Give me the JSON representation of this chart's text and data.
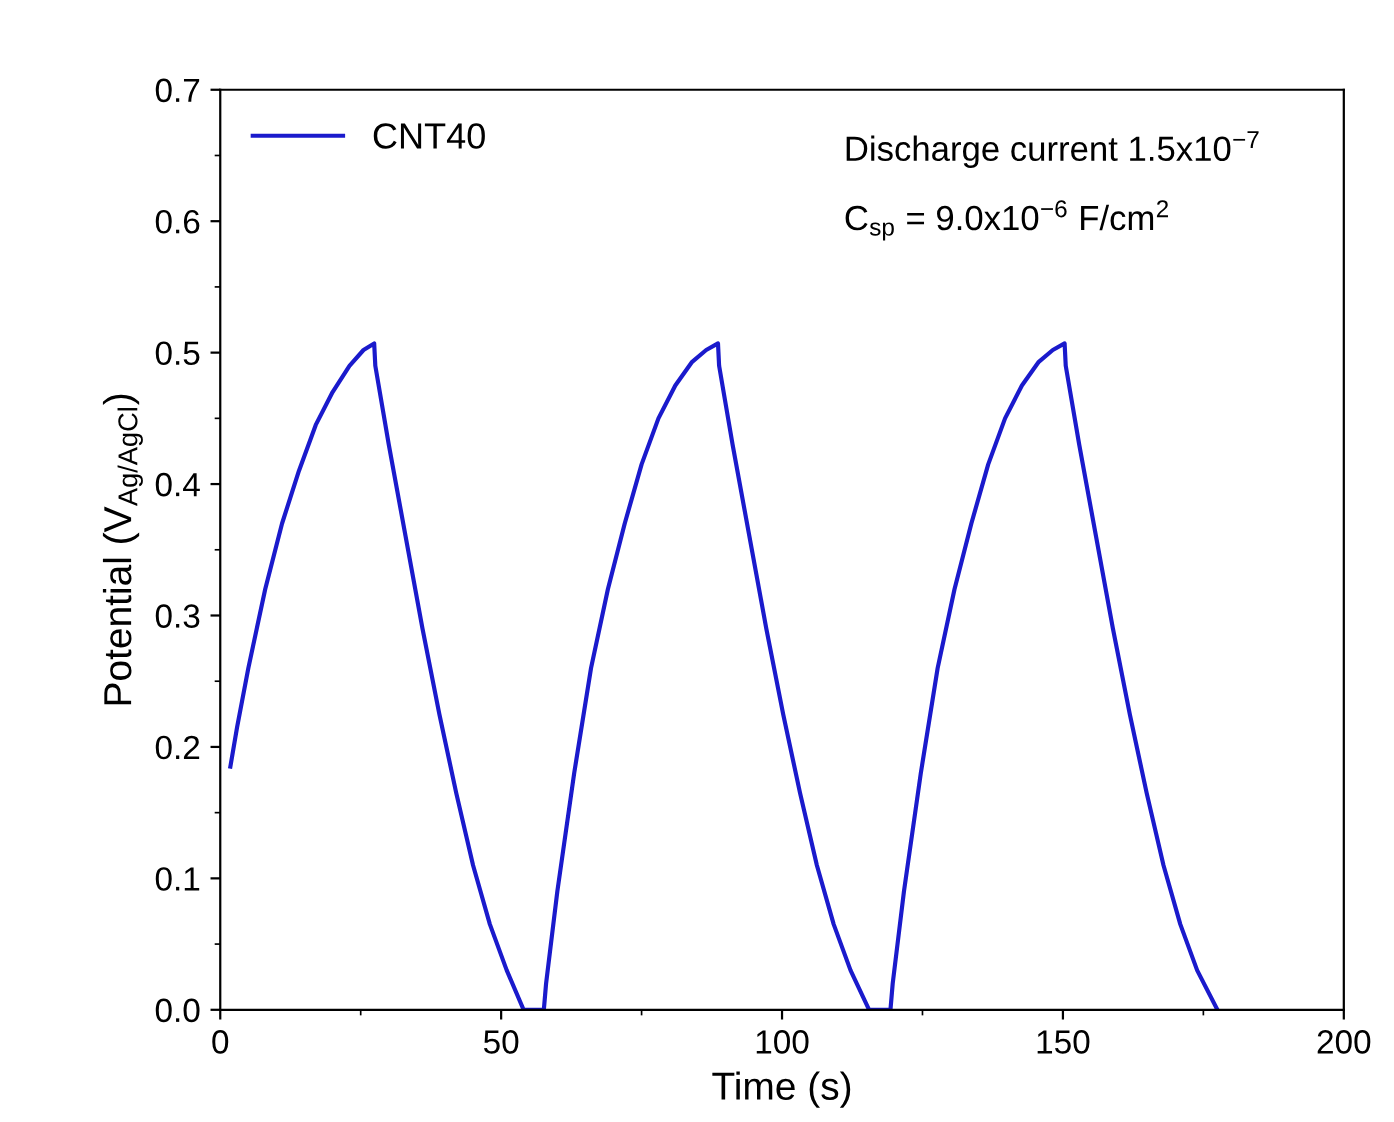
{
  "chart_data": {
    "type": "line",
    "xlabel": "Time (s)",
    "ylabel": "Potential (V$_{Ag/AgCl}$)",
    "xlim": [
      0,
      200
    ],
    "xticks": [
      0,
      50,
      100,
      150,
      200
    ],
    "ylim": [
      0,
      0.7
    ],
    "yticks": [
      {
        "value": 0,
        "label": "0.0"
      },
      0.1,
      0.2,
      0.3,
      0.4,
      0.5,
      0.6,
      0.7
    ],
    "grid": false,
    "legend": "top left",
    "marker": "none",
    "line_style": "solid",
    "annotations": [
      "Discharge current 1.5x10$^{−7}$",
      "C$_{sp}$ = 9.0x10$^{−6}$ F/cm$^{2}$"
    ],
    "series": [
      {
        "name": "CNT40",
        "color": "#1a1acc",
        "x": [
          1.8,
          3,
          5,
          8,
          11,
          14,
          17,
          20,
          23,
          25.5,
          27.4,
          27.6,
          30,
          33,
          36,
          39,
          42,
          45,
          48,
          51,
          54,
          57.6,
          58,
          60,
          63,
          66,
          69,
          72,
          75,
          78,
          81,
          84,
          86.5,
          88.6,
          88.8,
          91.2,
          94.2,
          97.2,
          100.2,
          103.2,
          106.2,
          109.2,
          112.2,
          115.5,
          119.3,
          119.7,
          121.7,
          124.7,
          127.7,
          130.7,
          133.7,
          136.7,
          139.7,
          142.7,
          145.7,
          148.2,
          150.3,
          150.5,
          152.9,
          155.9,
          158.9,
          161.9,
          164.9,
          167.9,
          170.9,
          173.9,
          177.5
        ],
        "values": [
          0.185,
          0.215,
          0.26,
          0.32,
          0.37,
          0.41,
          0.445,
          0.47,
          0.49,
          0.502,
          0.507,
          0.49,
          0.43,
          0.36,
          0.29,
          0.225,
          0.165,
          0.11,
          0.065,
          0.03,
          0.0,
          0.0,
          0.02,
          0.09,
          0.18,
          0.26,
          0.32,
          0.37,
          0.415,
          0.45,
          0.475,
          0.493,
          0.502,
          0.507,
          0.49,
          0.43,
          0.36,
          0.29,
          0.225,
          0.165,
          0.11,
          0.065,
          0.03,
          0.0,
          0.0,
          0.02,
          0.09,
          0.18,
          0.26,
          0.32,
          0.37,
          0.415,
          0.45,
          0.475,
          0.493,
          0.502,
          0.507,
          0.49,
          0.43,
          0.36,
          0.29,
          0.225,
          0.165,
          0.11,
          0.065,
          0.03,
          0.0
        ]
      }
    ]
  }
}
